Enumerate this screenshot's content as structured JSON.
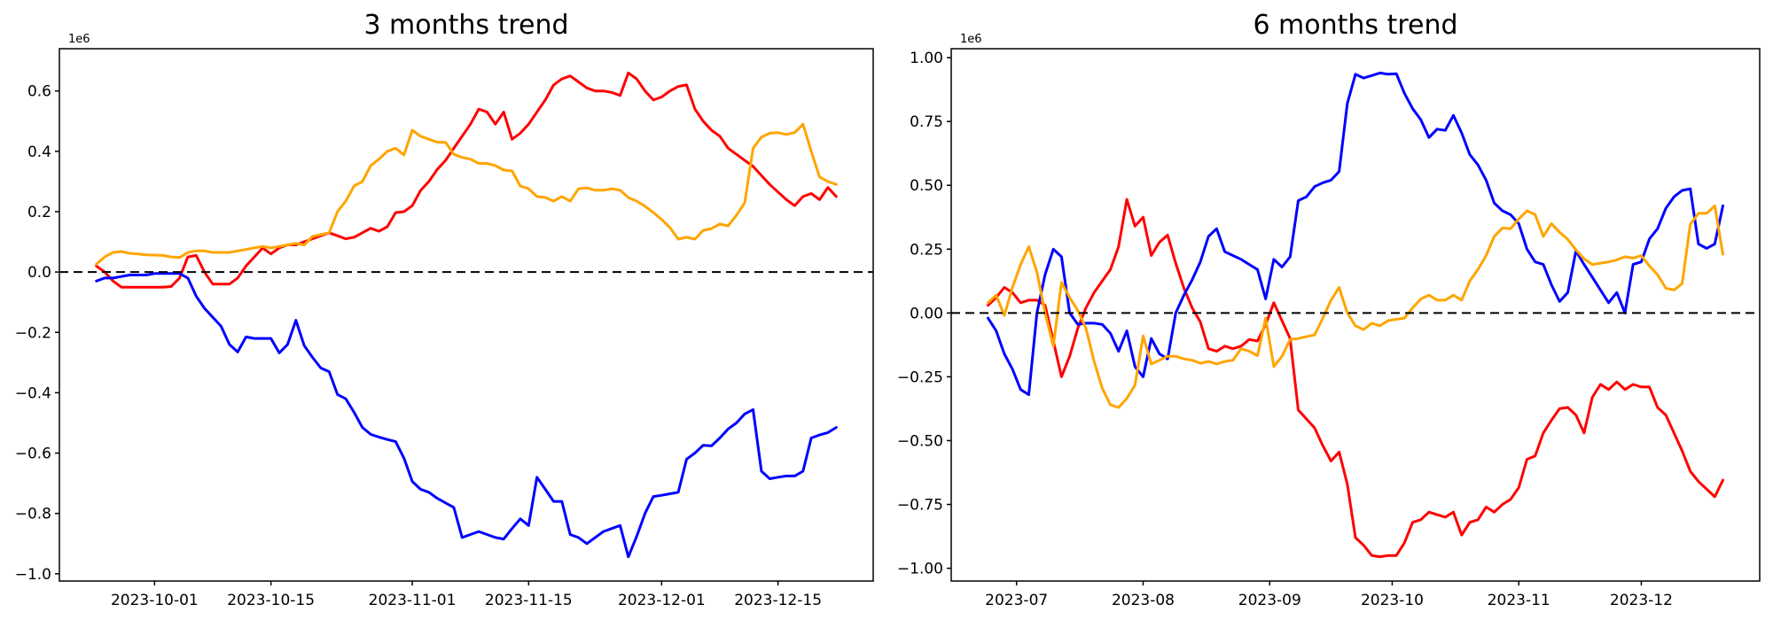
{
  "figure_background": "#ffffff",
  "chart_data": [
    {
      "type": "line",
      "title": "3 months trend",
      "axis_offset_label": "1e6",
      "xlabel": "",
      "ylabel": "",
      "grid": false,
      "legend": "none",
      "zero_line_dashed": true,
      "zero_line_color": "#000000",
      "x_start_date": "2023-09-24",
      "x_step_days": 1,
      "ylim": [
        -1.024,
        0.74
      ],
      "x_ticks": [
        {
          "date": "2023-10-01",
          "label": "2023-10-01"
        },
        {
          "date": "2023-10-15",
          "label": "2023-10-15"
        },
        {
          "date": "2023-11-01",
          "label": "2023-11-01"
        },
        {
          "date": "2023-11-15",
          "label": "2023-11-15"
        },
        {
          "date": "2023-12-01",
          "label": "2023-12-01"
        },
        {
          "date": "2023-12-15",
          "label": "2023-12-15"
        }
      ],
      "y_ticks": [
        {
          "value": 0.6,
          "label": "0.6"
        },
        {
          "value": 0.4,
          "label": "0.4"
        },
        {
          "value": 0.2,
          "label": "0.2"
        },
        {
          "value": 0.0,
          "label": "0.0"
        },
        {
          "value": -0.2,
          "label": "−0.2"
        },
        {
          "value": -0.4,
          "label": "−0.4"
        },
        {
          "value": -0.6,
          "label": "−0.6"
        },
        {
          "value": -0.8,
          "label": "−0.8"
        },
        {
          "value": -1.0,
          "label": "−1.0"
        }
      ],
      "series": [
        {
          "name": "red",
          "color": "#ff0000",
          "values": [
            0.02,
            0.0,
            -0.03,
            -0.05,
            -0.05,
            -0.05,
            -0.05,
            -0.05,
            -0.05,
            -0.048,
            -0.02,
            0.05,
            0.055,
            0.0,
            -0.04,
            -0.04,
            -0.04,
            -0.02,
            0.02,
            0.05,
            0.08,
            0.06,
            0.08,
            0.09,
            0.09,
            0.1,
            0.11,
            0.12,
            0.13,
            0.12,
            0.11,
            0.115,
            0.13,
            0.145,
            0.135,
            0.15,
            0.197,
            0.2,
            0.22,
            0.27,
            0.3,
            0.34,
            0.37,
            0.41,
            0.45,
            0.49,
            0.54,
            0.53,
            0.49,
            0.53,
            0.44,
            0.46,
            0.49,
            0.53,
            0.57,
            0.62,
            0.64,
            0.65,
            0.63,
            0.61,
            0.6,
            0.6,
            0.595,
            0.585,
            0.66,
            0.64,
            0.6,
            0.57,
            0.58,
            0.6,
            0.615,
            0.62,
            0.54,
            0.5,
            0.47,
            0.45,
            0.41,
            0.39,
            0.37,
            0.35,
            0.32,
            0.29,
            0.265,
            0.24,
            0.22,
            0.25,
            0.26,
            0.24,
            0.28,
            0.25
          ]
        },
        {
          "name": "blue",
          "color": "#0000ff",
          "values": [
            -0.03,
            -0.02,
            -0.02,
            -0.015,
            -0.01,
            -0.01,
            -0.01,
            -0.005,
            -0.005,
            -0.005,
            -0.005,
            -0.02,
            -0.08,
            -0.12,
            -0.15,
            -0.18,
            -0.24,
            -0.265,
            -0.215,
            -0.22,
            -0.22,
            -0.22,
            -0.268,
            -0.24,
            -0.16,
            -0.244,
            -0.283,
            -0.318,
            -0.33,
            -0.406,
            -0.42,
            -0.465,
            -0.515,
            -0.538,
            -0.547,
            -0.555,
            -0.562,
            -0.617,
            -0.694,
            -0.72,
            -0.73,
            -0.75,
            -0.765,
            -0.78,
            -0.88,
            -0.87,
            -0.86,
            -0.87,
            -0.88,
            -0.885,
            -0.85,
            -0.818,
            -0.84,
            -0.68,
            -0.72,
            -0.76,
            -0.76,
            -0.87,
            -0.88,
            -0.9,
            -0.88,
            -0.86,
            -0.85,
            -0.84,
            -0.944,
            -0.876,
            -0.8,
            -0.744,
            -0.74,
            -0.735,
            -0.73,
            -0.62,
            -0.6,
            -0.574,
            -0.576,
            -0.55,
            -0.52,
            -0.5,
            -0.47,
            -0.456,
            -0.66,
            -0.685,
            -0.68,
            -0.676,
            -0.676,
            -0.66,
            -0.55,
            -0.54,
            -0.532,
            -0.515
          ]
        },
        {
          "name": "orange",
          "color": "#ffa500",
          "values": [
            0.026,
            0.05,
            0.065,
            0.068,
            0.062,
            0.06,
            0.057,
            0.056,
            0.055,
            0.05,
            0.048,
            0.065,
            0.07,
            0.07,
            0.065,
            0.065,
            0.065,
            0.07,
            0.075,
            0.08,
            0.085,
            0.08,
            0.085,
            0.09,
            0.095,
            0.09,
            0.118,
            0.124,
            0.13,
            0.2,
            0.235,
            0.285,
            0.3,
            0.353,
            0.374,
            0.4,
            0.41,
            0.388,
            0.47,
            0.45,
            0.44,
            0.43,
            0.43,
            0.39,
            0.38,
            0.374,
            0.36,
            0.36,
            0.353,
            0.338,
            0.335,
            0.285,
            0.276,
            0.25,
            0.247,
            0.235,
            0.25,
            0.235,
            0.276,
            0.279,
            0.271,
            0.271,
            0.276,
            0.271,
            0.247,
            0.235,
            0.218,
            0.197,
            0.174,
            0.147,
            0.109,
            0.115,
            0.109,
            0.138,
            0.144,
            0.159,
            0.153,
            0.188,
            0.23,
            0.41,
            0.447,
            0.46,
            0.462,
            0.456,
            0.462,
            0.49,
            0.4,
            0.315,
            0.3,
            0.29
          ]
        }
      ]
    },
    {
      "type": "line",
      "title": "6 months trend",
      "axis_offset_label": "1e6",
      "xlabel": "",
      "ylabel": "",
      "grid": false,
      "legend": "none",
      "zero_line_dashed": true,
      "zero_line_color": "#000000",
      "x_start_date": "2023-06-24",
      "x_step_days": 2,
      "ylim": [
        -1.05,
        1.035
      ],
      "x_ticks": [
        {
          "date": "2023-07-01",
          "label": "2023-07"
        },
        {
          "date": "2023-08-01",
          "label": "2023-08"
        },
        {
          "date": "2023-09-01",
          "label": "2023-09"
        },
        {
          "date": "2023-10-01",
          "label": "2023-10"
        },
        {
          "date": "2023-11-01",
          "label": "2023-11"
        },
        {
          "date": "2023-12-01",
          "label": "2023-12"
        }
      ],
      "y_ticks": [
        {
          "value": 1.0,
          "label": "1.00"
        },
        {
          "value": 0.75,
          "label": "0.75"
        },
        {
          "value": 0.5,
          "label": "0.50"
        },
        {
          "value": 0.25,
          "label": "0.25"
        },
        {
          "value": 0.0,
          "label": "0.00"
        },
        {
          "value": -0.25,
          "label": "−0.25"
        },
        {
          "value": -0.5,
          "label": "−0.50"
        },
        {
          "value": -0.75,
          "label": "−0.75"
        },
        {
          "value": -1.0,
          "label": "−1.00"
        }
      ],
      "series": [
        {
          "name": "red",
          "color": "#ff0000",
          "values": [
            0.03,
            0.06,
            0.1,
            0.08,
            0.04,
            0.05,
            0.05,
            0.03,
            -0.11,
            -0.25,
            -0.17,
            -0.06,
            0.02,
            0.08,
            0.125,
            0.17,
            0.26,
            0.445,
            0.34,
            0.375,
            0.225,
            0.277,
            0.305,
            0.194,
            0.097,
            0.02,
            -0.035,
            -0.14,
            -0.15,
            -0.13,
            -0.14,
            -0.13,
            -0.104,
            -0.11,
            -0.045,
            0.04,
            -0.03,
            -0.1,
            -0.38,
            -0.415,
            -0.45,
            -0.52,
            -0.58,
            -0.545,
            -0.67,
            -0.88,
            -0.91,
            -0.95,
            -0.955,
            -0.95,
            -0.95,
            -0.9,
            -0.82,
            -0.81,
            -0.78,
            -0.79,
            -0.8,
            -0.78,
            -0.87,
            -0.82,
            -0.81,
            -0.76,
            -0.78,
            -0.75,
            -0.73,
            -0.684,
            -0.573,
            -0.56,
            -0.47,
            -0.42,
            -0.375,
            -0.37,
            -0.4,
            -0.47,
            -0.33,
            -0.28,
            -0.3,
            -0.27,
            -0.3,
            -0.28,
            -0.29,
            -0.29,
            -0.37,
            -0.4,
            -0.47,
            -0.54,
            -0.62,
            -0.66,
            -0.69,
            -0.72,
            -0.655
          ]
        },
        {
          "name": "blue",
          "color": "#0000ff",
          "values": [
            -0.02,
            -0.07,
            -0.16,
            -0.22,
            -0.3,
            -0.32,
            0.0,
            0.15,
            0.25,
            0.22,
            0.0,
            -0.045,
            -0.04,
            -0.04,
            -0.045,
            -0.08,
            -0.15,
            -0.07,
            -0.21,
            -0.25,
            -0.1,
            -0.16,
            -0.18,
            0.0,
            0.07,
            0.13,
            0.2,
            0.3,
            0.33,
            0.24,
            0.225,
            0.21,
            0.19,
            0.17,
            0.055,
            0.21,
            0.18,
            0.22,
            0.44,
            0.455,
            0.495,
            0.51,
            0.52,
            0.554,
            0.82,
            0.935,
            0.92,
            0.93,
            0.94,
            0.935,
            0.937,
            0.86,
            0.8,
            0.757,
            0.687,
            0.72,
            0.715,
            0.774,
            0.705,
            0.62,
            0.58,
            0.52,
            0.43,
            0.4,
            0.385,
            0.35,
            0.25,
            0.2,
            0.19,
            0.11,
            0.045,
            0.08,
            0.243,
            0.19,
            0.14,
            0.09,
            0.04,
            0.08,
            0.0,
            0.19,
            0.2,
            0.29,
            0.33,
            0.41,
            0.455,
            0.48,
            0.486,
            0.27,
            0.253,
            0.27,
            0.42
          ]
        },
        {
          "name": "orange",
          "color": "#ffa500",
          "values": [
            0.04,
            0.07,
            -0.01,
            0.1,
            0.19,
            0.26,
            0.16,
            0.0,
            -0.13,
            0.12,
            0.06,
            0.01,
            -0.06,
            -0.19,
            -0.295,
            -0.36,
            -0.37,
            -0.335,
            -0.283,
            -0.09,
            -0.2,
            -0.185,
            -0.17,
            -0.17,
            -0.18,
            -0.185,
            -0.197,
            -0.19,
            -0.2,
            -0.19,
            -0.185,
            -0.14,
            -0.15,
            -0.167,
            -0.02,
            -0.21,
            -0.17,
            -0.104,
            -0.1,
            -0.093,
            -0.086,
            -0.02,
            0.05,
            0.1,
            0.0,
            -0.05,
            -0.065,
            -0.04,
            -0.05,
            -0.03,
            -0.025,
            -0.02,
            0.02,
            0.055,
            0.07,
            0.05,
            0.05,
            0.07,
            0.05,
            0.125,
            0.17,
            0.225,
            0.3,
            0.333,
            0.33,
            0.368,
            0.4,
            0.385,
            0.3,
            0.35,
            0.316,
            0.288,
            0.247,
            0.212,
            0.19,
            0.195,
            0.2,
            0.208,
            0.22,
            0.215,
            0.225,
            0.184,
            0.15,
            0.097,
            0.09,
            0.115,
            0.347,
            0.39,
            0.39,
            0.42,
            0.23
          ]
        }
      ]
    }
  ]
}
